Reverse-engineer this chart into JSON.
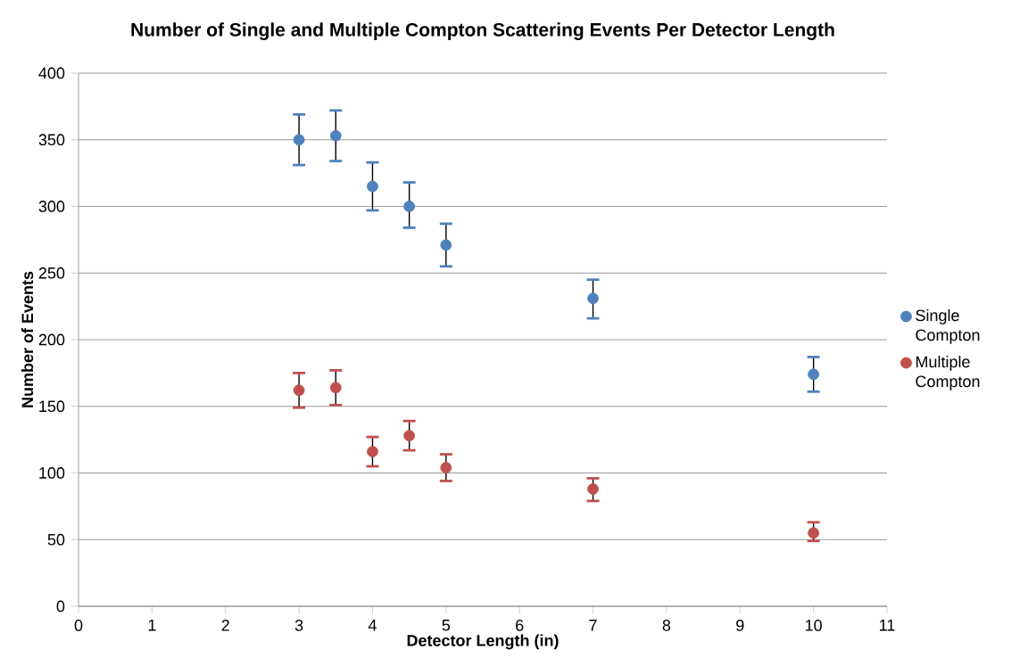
{
  "chart_data": {
    "type": "scatter",
    "title": "Number of Single and Multiple Compton Scattering Events Per Detector Length",
    "xlabel": "Detector Length (in)",
    "ylabel": "Number of Events",
    "x": [
      3,
      3.5,
      4,
      4.5,
      5,
      7,
      10
    ],
    "series": [
      {
        "name": "Single Compton",
        "color": "#4f81bd",
        "values": [
          350,
          353,
          315,
          300,
          271,
          231,
          174
        ],
        "errors": [
          [
            331,
            369
          ],
          [
            334,
            372
          ],
          [
            297,
            333
          ],
          [
            284,
            318
          ],
          [
            255,
            287
          ],
          [
            216,
            245
          ],
          [
            161,
            187
          ]
        ]
      },
      {
        "name": "Multiple Compton",
        "color": "#c0504d",
        "values": [
          162,
          164,
          116,
          128,
          104,
          88,
          55
        ],
        "errors": [
          [
            149,
            175
          ],
          [
            151,
            177
          ],
          [
            105,
            127
          ],
          [
            117,
            139
          ],
          [
            94,
            114
          ],
          [
            79,
            96
          ],
          [
            49,
            63
          ]
        ]
      }
    ],
    "xlim": [
      0,
      11
    ],
    "xticks": [
      0,
      1,
      2,
      3,
      4,
      5,
      6,
      7,
      8,
      9,
      10,
      11
    ],
    "ylim": [
      0,
      400
    ],
    "yticks": [
      0,
      50,
      100,
      150,
      200,
      250,
      300,
      350,
      400
    ],
    "grid": "y",
    "legend": "right",
    "marker": "circle"
  }
}
